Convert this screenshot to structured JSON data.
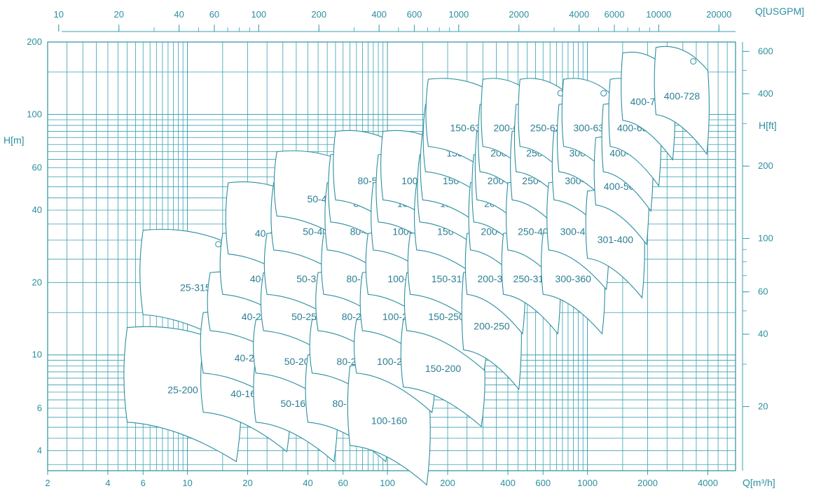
{
  "chart_data": {
    "type": "scatter",
    "title": "",
    "x_scale": "log",
    "y_scale": "log",
    "xlabel_bottom": "Q[m³/h]",
    "xlabel_top": "Q[USGPM]",
    "ylabel_left": "H[m]",
    "ylabel_right": "H[ft]",
    "xlim": [
      2,
      5500
    ],
    "ylim": [
      3.3,
      200
    ],
    "grid": true,
    "bottom_ticks": [
      "2",
      "4",
      "6",
      "10",
      "20",
      "40",
      "60",
      "100",
      "200",
      "400",
      "600",
      "1000",
      "2000",
      "4000"
    ],
    "top_ticks": [
      "10",
      "20",
      "40",
      "60",
      "100",
      "200",
      "400",
      "600",
      "1000",
      "2000",
      "4000",
      "6000",
      "10000",
      "20000"
    ],
    "left_ticks": [
      "4",
      "6",
      "10",
      "20",
      "40",
      "60",
      "100",
      "200"
    ],
    "right_ticks": [
      "20",
      "40",
      "60",
      "100",
      "200",
      "400",
      "600"
    ],
    "series": [
      {
        "label": "25-200",
        "q": [
          5,
          18
        ],
        "h": [
          5,
          13
        ]
      },
      {
        "label": "25-315",
        "q": [
          6,
          20
        ],
        "h": [
          14,
          33
        ]
      },
      {
        "label": "40-160",
        "q": [
          12,
          32
        ],
        "h": [
          5.5,
          11
        ]
      },
      {
        "label": "40-200",
        "q": [
          12,
          35
        ],
        "h": [
          8,
          15
        ]
      },
      {
        "label": "40-250",
        "q": [
          13,
          38
        ],
        "h": [
          12,
          22
        ]
      },
      {
        "label": "40-315",
        "q": [
          15,
          40
        ],
        "h": [
          17,
          32
        ]
      },
      {
        "label": "40-400",
        "q": [
          16,
          42
        ],
        "h": [
          25,
          52
        ]
      },
      {
        "label": "50-160",
        "q": [
          22,
          55
        ],
        "h": [
          5,
          10
        ]
      },
      {
        "label": "50-200",
        "q": [
          22,
          60
        ],
        "h": [
          8,
          14
        ]
      },
      {
        "label": "50-250",
        "q": [
          24,
          65
        ],
        "h": [
          12,
          22
        ]
      },
      {
        "label": "50-315",
        "q": [
          25,
          70
        ],
        "h": [
          17,
          32
        ]
      },
      {
        "label": "50-400",
        "q": [
          27,
          75
        ],
        "h": [
          26,
          52
        ]
      },
      {
        "label": "50-450",
        "q": [
          28,
          80
        ],
        "h": [
          36,
          70
        ]
      },
      {
        "label": "80-160",
        "q": [
          40,
          100
        ],
        "h": [
          5,
          10
        ]
      },
      {
        "label": "80-200",
        "q": [
          42,
          105
        ],
        "h": [
          8,
          14
        ]
      },
      {
        "label": "80-250",
        "q": [
          45,
          110
        ],
        "h": [
          12,
          22
        ]
      },
      {
        "label": "80-315",
        "q": [
          48,
          115
        ],
        "h": [
          17,
          32
        ]
      },
      {
        "label": "80-400",
        "q": [
          50,
          120
        ],
        "h": [
          26,
          52
        ]
      },
      {
        "label": "80-450",
        "q": [
          52,
          125
        ],
        "h": [
          34,
          68
        ]
      },
      {
        "label": "80-500",
        "q": [
          55,
          130
        ],
        "h": [
          42,
          85
        ]
      },
      {
        "label": "100-160",
        "q": [
          65,
          160
        ],
        "h": [
          4,
          9
        ]
      },
      {
        "label": "100-200",
        "q": [
          70,
          170
        ],
        "h": [
          8,
          14
        ]
      },
      {
        "label": "100-250",
        "q": [
          75,
          180
        ],
        "h": [
          12,
          22
        ]
      },
      {
        "label": "100-315",
        "q": [
          80,
          190
        ],
        "h": [
          17,
          32
        ]
      },
      {
        "label": "100-400",
        "q": [
          85,
          200
        ],
        "h": [
          26,
          52
        ]
      },
      {
        "label": "100-450",
        "q": [
          90,
          210
        ],
        "h": [
          34,
          68
        ]
      },
      {
        "label": "100-500",
        "q": [
          95,
          220
        ],
        "h": [
          42,
          85
        ]
      },
      {
        "label": "150-200",
        "q": [
          120,
          300
        ],
        "h": [
          7,
          14
        ]
      },
      {
        "label": "150-250",
        "q": [
          125,
          310
        ],
        "h": [
          12,
          22
        ]
      },
      {
        "label": "150-315",
        "q": [
          130,
          320
        ],
        "h": [
          17,
          32
        ]
      },
      {
        "label": "150-400",
        "q": [
          140,
          340
        ],
        "h": [
          26,
          52
        ]
      },
      {
        "label": "150-450",
        "q": [
          145,
          350
        ],
        "h": [
          34,
          68
        ]
      },
      {
        "label": "150-500",
        "q": [
          150,
          360
        ],
        "h": [
          42,
          85
        ]
      },
      {
        "label": "150-560",
        "q": [
          155,
          380
        ],
        "h": [
          55,
          110
        ]
      },
      {
        "label": "150-630",
        "q": [
          160,
          400
        ],
        "h": [
          70,
          140
        ]
      },
      {
        "label": "200-250",
        "q": [
          240,
          460
        ],
        "h": [
          10,
          22
        ]
      },
      {
        "label": "200-315",
        "q": [
          250,
          480
        ],
        "h": [
          17,
          32
        ]
      },
      {
        "label": "200-400",
        "q": [
          260,
          500
        ],
        "h": [
          26,
          52
        ]
      },
      {
        "label": "200-450",
        "q": [
          270,
          520
        ],
        "h": [
          34,
          68
        ]
      },
      {
        "label": "200-500",
        "q": [
          280,
          540
        ],
        "h": [
          42,
          85
        ]
      },
      {
        "label": "200-560",
        "q": [
          290,
          560
        ],
        "h": [
          55,
          110
        ]
      },
      {
        "label": "200-630",
        "q": [
          300,
          580
        ],
        "h": [
          70,
          140
        ]
      },
      {
        "label": "250-315",
        "q": [
          380,
          720
        ],
        "h": [
          17,
          32
        ]
      },
      {
        "label": "250-400",
        "q": [
          400,
          760
        ],
        "h": [
          26,
          52
        ]
      },
      {
        "label": "250-500",
        "q": [
          420,
          800
        ],
        "h": [
          42,
          85
        ]
      },
      {
        "label": "250-560",
        "q": [
          440,
          840
        ],
        "h": [
          55,
          110
        ]
      },
      {
        "label": "250-630",
        "q": [
          460,
          880
        ],
        "h": [
          70,
          140
        ]
      },
      {
        "label": "300-360",
        "q": [
          600,
          1200
        ],
        "h": [
          17,
          32
        ]
      },
      {
        "label": "300-400",
        "q": [
          640,
          1260
        ],
        "h": [
          26,
          52
        ]
      },
      {
        "label": "300-500",
        "q": [
          680,
          1320
        ],
        "h": [
          42,
          85
        ]
      },
      {
        "label": "300-560",
        "q": [
          720,
          1380
        ],
        "h": [
          55,
          110
        ]
      },
      {
        "label": "300-630",
        "q": [
          760,
          1440
        ],
        "h": [
          70,
          140
        ]
      },
      {
        "label": "301-400",
        "q": [
          1000,
          1900
        ],
        "h": [
          24,
          48
        ]
      },
      {
        "label": "400-500",
        "q": [
          1100,
          2000
        ],
        "h": [
          40,
          80
        ]
      },
      {
        "label": "400-560",
        "q": [
          1200,
          2100
        ],
        "h": [
          55,
          110
        ]
      },
      {
        "label": "400-630",
        "q": [
          1300,
          2300
        ],
        "h": [
          70,
          140
        ]
      },
      {
        "label": "400-720",
        "q": [
          1500,
          2700
        ],
        "h": [
          90,
          180
        ]
      },
      {
        "label": "400-728",
        "q": [
          2200,
          4000
        ],
        "h": [
          95,
          190
        ]
      }
    ]
  }
}
